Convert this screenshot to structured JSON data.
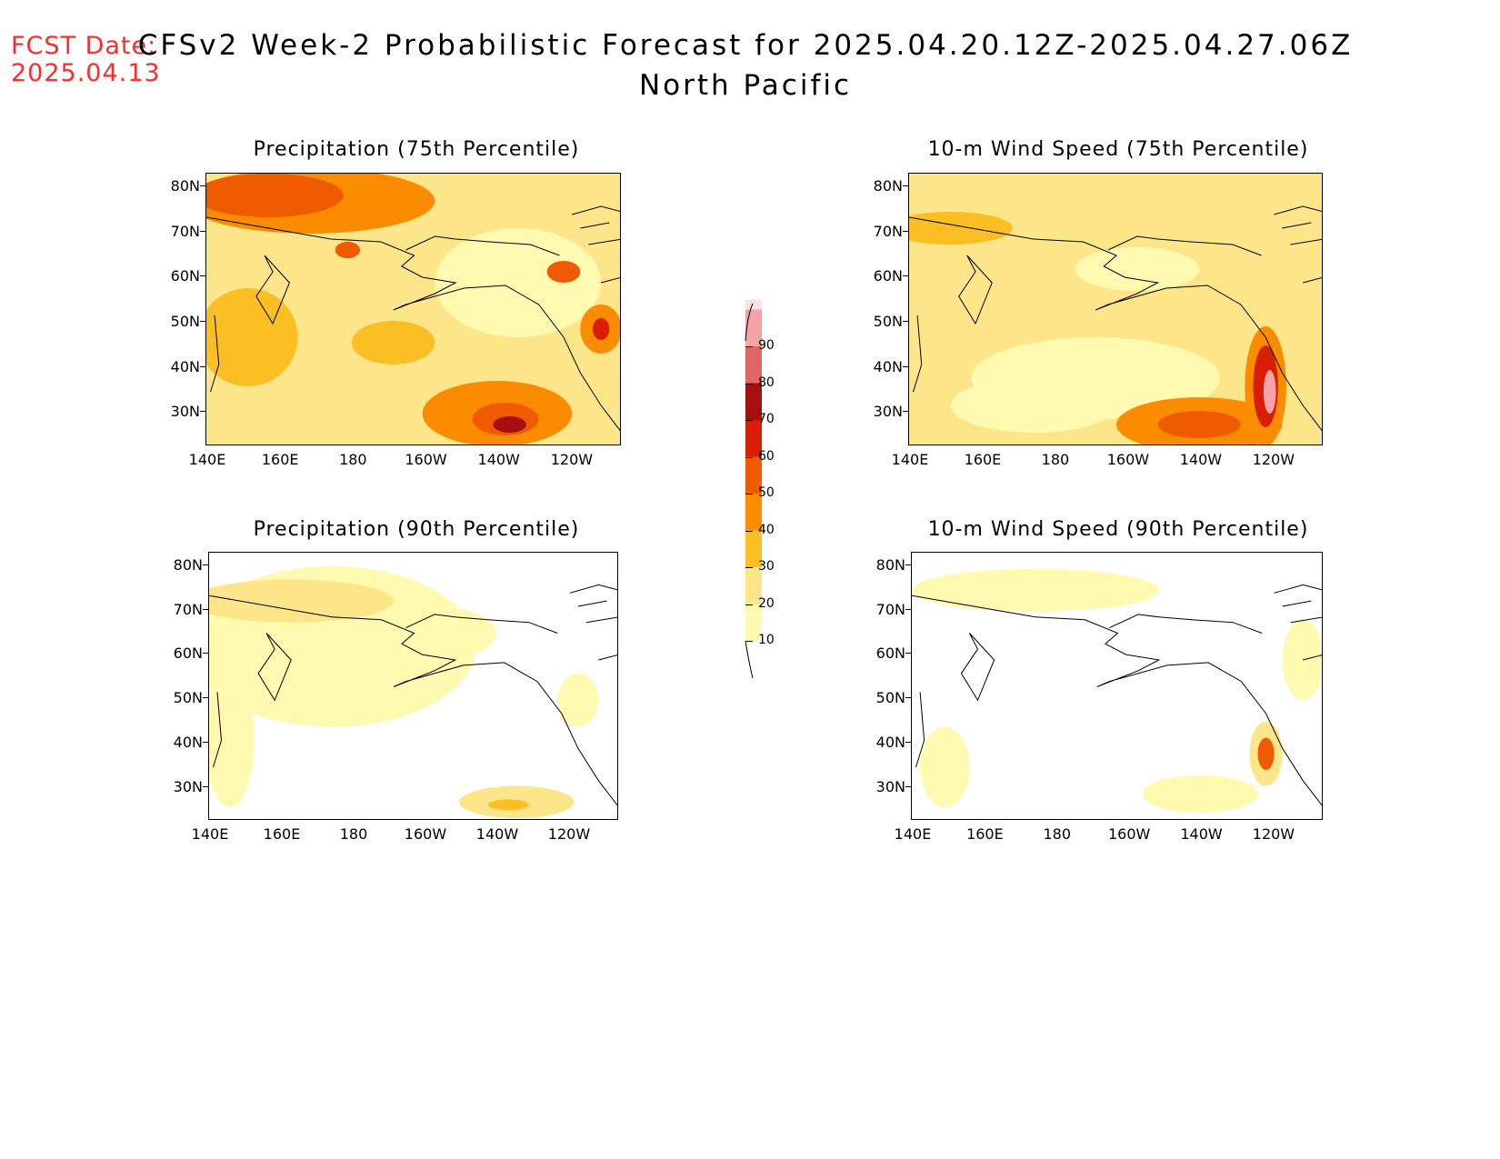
{
  "header": {
    "fcst_label": "FCST Date:",
    "fcst_date": "2025.04.13",
    "title_line1": "CFSv2 Week-2 Probabilistic Forecast for 2025.04.20.12Z-2025.04.27.06Z",
    "title_line2": "North Pacific"
  },
  "panels": [
    {
      "title": "Precipitation (75th Percentile)"
    },
    {
      "title": "10-m Wind Speed (75th Percentile)"
    },
    {
      "title": "Precipitation (90th Percentile)"
    },
    {
      "title": "10-m Wind Speed (90th Percentile)"
    }
  ],
  "axes": {
    "lat_labels": [
      "80N",
      "70N",
      "60N",
      "50N",
      "40N",
      "30N"
    ],
    "lon_labels": [
      "140E",
      "160E",
      "180",
      "160W",
      "140W",
      "120W"
    ]
  },
  "colorbar": {
    "levels": [
      "10",
      "20",
      "30",
      "40",
      "50",
      "60",
      "70",
      "80",
      "90"
    ],
    "colors": [
      "#fffab0",
      "#fde68a",
      "#fbbf24",
      "#fb8c00",
      "#f05a00",
      "#d81e05",
      "#a50f0f",
      "#e06666",
      "#f4a3a8",
      "#fde0e3"
    ]
  }
}
